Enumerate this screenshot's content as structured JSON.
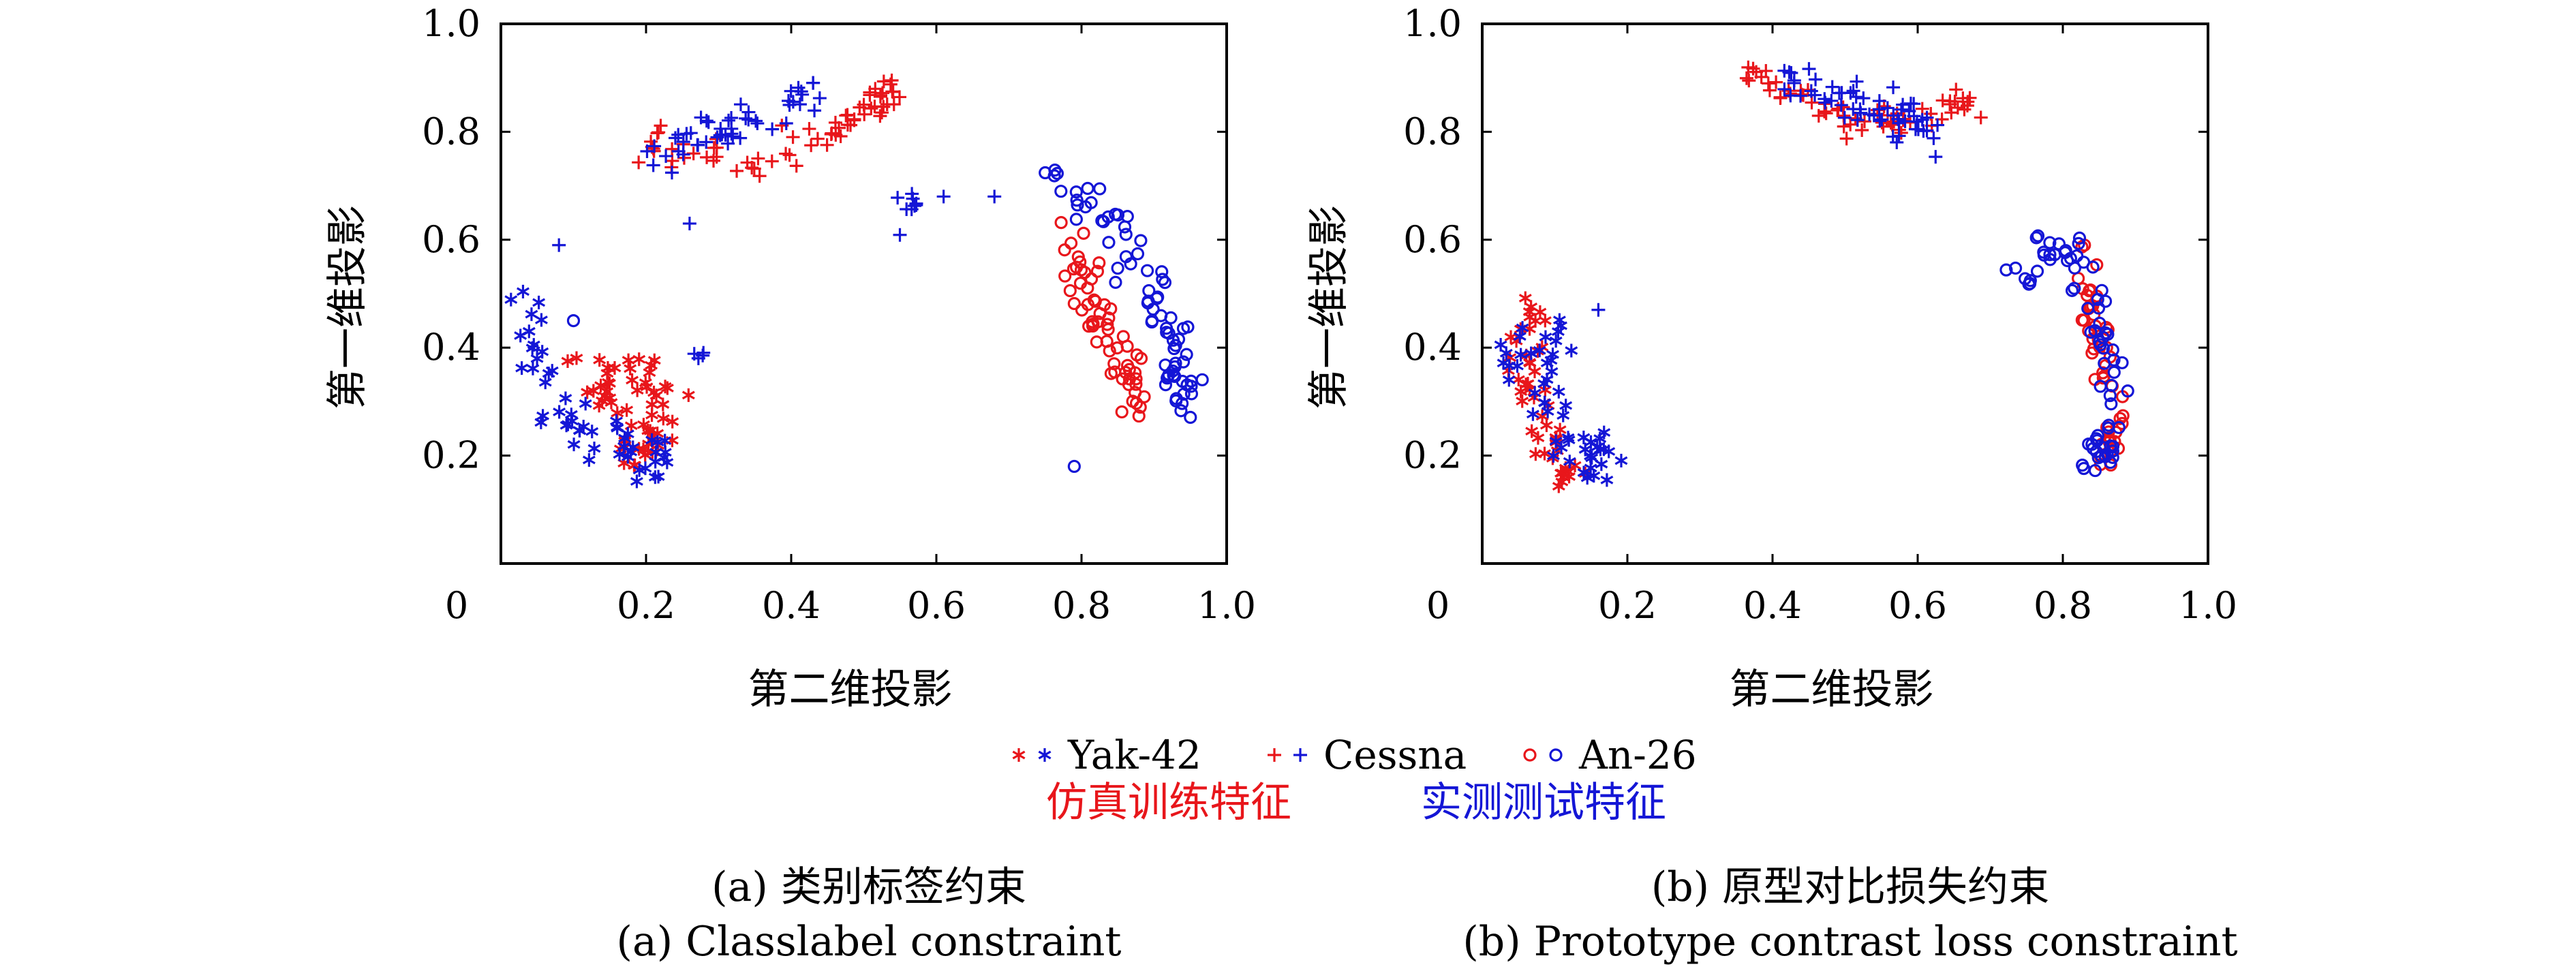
{
  "colors": {
    "simulated": "#e8161b",
    "measured": "#1416d6",
    "axis": "#000000"
  },
  "legend": {
    "items": [
      {
        "label": "Yak-42",
        "marker": "star"
      },
      {
        "label": "Cessna",
        "marker": "plus"
      },
      {
        "label": "An-26",
        "marker": "circle"
      }
    ],
    "simulated_label": "仿真训练特征",
    "measured_label": "实测测试特征"
  },
  "chart_data": [
    {
      "type": "scatter",
      "caption_cn": "(a) 类别标签约束",
      "caption_en": "(a) Classlabel constraint",
      "xlabel": "第二维投影",
      "ylabel": "第一维投影",
      "xlim": [
        0,
        1.0
      ],
      "ylim": [
        0,
        1.0
      ],
      "xticks": [
        "0",
        "0.2",
        "0.4",
        "0.6",
        "0.8",
        "1.0"
      ],
      "yticks": [
        "0.2",
        "0.4",
        "0.6",
        "0.8",
        "1.0"
      ],
      "grid": false,
      "clusters": [
        {
          "class": "Yak-42",
          "source": "simulated",
          "marker": "star",
          "path": [
            [
              0.12,
              0.38
            ],
            [
              0.19,
              0.36
            ],
            [
              0.24,
              0.28
            ],
            [
              0.2,
              0.2
            ],
            [
              0.15,
              0.3
            ],
            [
              0.1,
              0.36
            ]
          ],
          "spread": 0.025,
          "count": 60
        },
        {
          "class": "Yak-42",
          "source": "measured",
          "marker": "star",
          "path": [
            [
              0.02,
              0.5
            ],
            [
              0.04,
              0.4
            ],
            [
              0.08,
              0.28
            ],
            [
              0.14,
              0.22
            ],
            [
              0.2,
              0.19
            ],
            [
              0.23,
              0.18
            ]
          ],
          "spread": 0.025,
          "count": 55
        },
        {
          "class": "Cessna",
          "source": "simulated",
          "marker": "plus",
          "path": [
            [
              0.2,
              0.78
            ],
            [
              0.28,
              0.76
            ],
            [
              0.36,
              0.74
            ],
            [
              0.44,
              0.78
            ],
            [
              0.5,
              0.84
            ],
            [
              0.55,
              0.88
            ]
          ],
          "spread": 0.015,
          "count": 70
        },
        {
          "class": "Cessna",
          "source": "measured",
          "marker": "plus",
          "path": [
            [
              0.2,
              0.75
            ],
            [
              0.26,
              0.78
            ],
            [
              0.32,
              0.8
            ],
            [
              0.38,
              0.84
            ],
            [
              0.44,
              0.88
            ]
          ],
          "spread": 0.018,
          "count": 50
        },
        {
          "class": "Cessna",
          "source": "measured",
          "marker": "plus",
          "path": [
            [
              0.545,
              0.62
            ],
            [
              0.56,
              0.66
            ],
            [
              0.57,
              0.69
            ]
          ],
          "spread": 0.008,
          "count": 9
        },
        {
          "class": "Cessna",
          "source": "measured",
          "marker": "plus",
          "path": [
            [
              0.27,
              0.39
            ],
            [
              0.28,
              0.38
            ]
          ],
          "spread": 0.005,
          "count": 4
        },
        {
          "class": "An-26",
          "source": "simulated",
          "marker": "circle",
          "path": [
            [
              0.79,
              0.62
            ],
            [
              0.8,
              0.52
            ],
            [
              0.83,
              0.44
            ],
            [
              0.86,
              0.36
            ],
            [
              0.88,
              0.3
            ]
          ],
          "spread": 0.017,
          "count": 60
        },
        {
          "class": "An-26",
          "source": "measured",
          "marker": "circle",
          "path": [
            [
              0.75,
              0.72
            ],
            [
              0.83,
              0.66
            ],
            [
              0.89,
              0.54
            ],
            [
              0.92,
              0.44
            ],
            [
              0.94,
              0.34
            ],
            [
              0.93,
              0.29
            ]
          ],
          "spread": 0.02,
          "count": 75
        }
      ],
      "outliers": [
        {
          "x": 0.08,
          "y": 0.59,
          "marker": "plus",
          "source": "measured"
        },
        {
          "x": 0.26,
          "y": 0.63,
          "marker": "plus",
          "source": "measured"
        },
        {
          "x": 0.61,
          "y": 0.68,
          "marker": "plus",
          "source": "measured"
        },
        {
          "x": 0.68,
          "y": 0.68,
          "marker": "plus",
          "source": "measured"
        },
        {
          "x": 0.79,
          "y": 0.18,
          "marker": "circle",
          "source": "measured"
        },
        {
          "x": 0.1,
          "y": 0.45,
          "marker": "circle",
          "source": "measured"
        }
      ]
    },
    {
      "type": "scatter",
      "caption_cn": "(b) 原型对比损失约束",
      "caption_en": "(b) Prototype contrast loss constraint",
      "xlabel": "第二维投影",
      "ylabel": "第一维投影",
      "xlim": [
        0,
        1.0
      ],
      "ylim": [
        0,
        1.0
      ],
      "xticks": [
        "0",
        "0.2",
        "0.4",
        "0.6",
        "0.8",
        "1.0"
      ],
      "yticks": [
        "0.2",
        "0.4",
        "0.6",
        "0.8",
        "1.0"
      ],
      "grid": false,
      "clusters": [
        {
          "class": "Yak-42",
          "source": "simulated",
          "marker": "star",
          "path": [
            [
              0.08,
              0.47
            ],
            [
              0.05,
              0.38
            ],
            [
              0.07,
              0.28
            ],
            [
              0.1,
              0.2
            ],
            [
              0.12,
              0.16
            ]
          ],
          "spread": 0.02,
          "count": 50
        },
        {
          "class": "Yak-42",
          "source": "measured",
          "marker": "star",
          "path": [
            [
              0.03,
              0.34
            ],
            [
              0.06,
              0.42
            ],
            [
              0.1,
              0.44
            ],
            [
              0.08,
              0.3
            ],
            [
              0.12,
              0.22
            ],
            [
              0.17,
              0.19
            ]
          ],
          "spread": 0.022,
          "count": 55
        },
        {
          "class": "Cessna",
          "source": "simulated",
          "marker": "plus",
          "path": [
            [
              0.36,
              0.91
            ],
            [
              0.44,
              0.87
            ],
            [
              0.52,
              0.82
            ],
            [
              0.6,
              0.83
            ],
            [
              0.68,
              0.86
            ]
          ],
          "spread": 0.015,
          "count": 65
        },
        {
          "class": "Cessna",
          "source": "measured",
          "marker": "plus",
          "path": [
            [
              0.4,
              0.9
            ],
            [
              0.48,
              0.87
            ],
            [
              0.56,
              0.84
            ],
            [
              0.62,
              0.8
            ]
          ],
          "spread": 0.018,
          "count": 60
        },
        {
          "class": "An-26",
          "source": "simulated",
          "marker": "circle",
          "path": [
            [
              0.83,
              0.58
            ],
            [
              0.84,
              0.46
            ],
            [
              0.86,
              0.36
            ],
            [
              0.87,
              0.26
            ],
            [
              0.85,
              0.2
            ]
          ],
          "spread": 0.016,
          "count": 55
        },
        {
          "class": "An-26",
          "source": "measured",
          "marker": "circle",
          "path": [
            [
              0.74,
              0.52
            ],
            [
              0.76,
              0.58
            ],
            [
              0.82,
              0.56
            ],
            [
              0.85,
              0.44
            ],
            [
              0.88,
              0.34
            ],
            [
              0.86,
              0.22
            ],
            [
              0.85,
              0.19
            ]
          ],
          "spread": 0.018,
          "count": 75
        }
      ],
      "outliers": [
        {
          "x": 0.16,
          "y": 0.47,
          "marker": "plus",
          "source": "measured"
        }
      ]
    }
  ]
}
